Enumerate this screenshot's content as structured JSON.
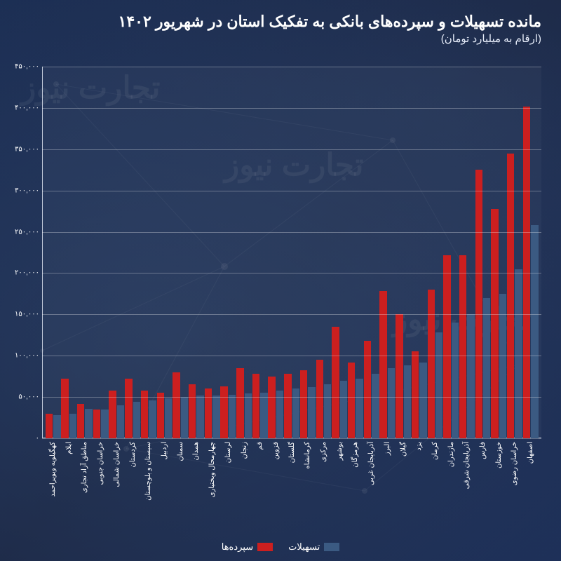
{
  "watermark_text": "تجارت نیوز",
  "chart": {
    "type": "bar",
    "title": "مانده تسهیلات و سپرده‌های بانکی به تفکیک استان در شهریور ۱۴۰۲",
    "subtitle": "(ارقام به میلیارد تومان)",
    "title_fontsize": 22,
    "subtitle_fontsize": 15,
    "direction": "rtl",
    "background_color": "#1a2a4a",
    "grid_color": "rgba(255,255,255,0.30)",
    "axis_color": "#c0c8d8",
    "tick_label_color": "#ffffff",
    "tick_label_fontsize": 10,
    "xlabel_rotation_vertical": true,
    "ylim": [
      0,
      450000
    ],
    "ytick_step": 50000,
    "ytick_labels_persian_digits": true,
    "bar_group_gap_ratio": 0.2,
    "bar_width_ratio": 0.46,
    "legend_position": "bottom-center",
    "categories": [
      "اصفهان",
      "خراسان رضوی",
      "خوزستان",
      "فارس",
      "آذربایجان شرقی",
      "مازندران",
      "کرمان",
      "یزد",
      "گیلان",
      "البرز",
      "آذربایجان غربی",
      "هرمزگان",
      "بوشهر",
      "مرکزی",
      "کرمانشاه",
      "گلستان",
      "قزوین",
      "قم",
      "زنجان",
      "لرستان",
      "چهارمحال وبختیاری",
      "همدان",
      "سمنان",
      "اردبیل",
      "سیستان و بلوچستان",
      "کردستان",
      "خراسان شمالی",
      "خراسان جنوبی",
      "مناطق آزاد تجاری",
      "ایلام",
      "کهگیلویه وبویراحمد"
    ],
    "series": [
      {
        "name": "تسهیلات",
        "color": "#3b5a82",
        "values": [
          258000,
          205000,
          175000,
          170000,
          150000,
          140000,
          128000,
          92000,
          88000,
          85000,
          78000,
          72000,
          70000,
          65000,
          62000,
          60000,
          58000,
          55000,
          54000,
          53000,
          52000,
          52000,
          50000,
          48000,
          46000,
          44000,
          40000,
          35000,
          36000,
          30000,
          28000
        ]
      },
      {
        "name": "سپرده‌ها",
        "color": "#cc1f1f",
        "values": [
          402000,
          345000,
          278000,
          325000,
          222000,
          222000,
          180000,
          105000,
          150000,
          178000,
          118000,
          92000,
          135000,
          95000,
          82000,
          78000,
          75000,
          78000,
          85000,
          63000,
          60000,
          65000,
          80000,
          55000,
          58000,
          72000,
          58000,
          35000,
          42000,
          72000,
          30000
        ]
      }
    ]
  }
}
